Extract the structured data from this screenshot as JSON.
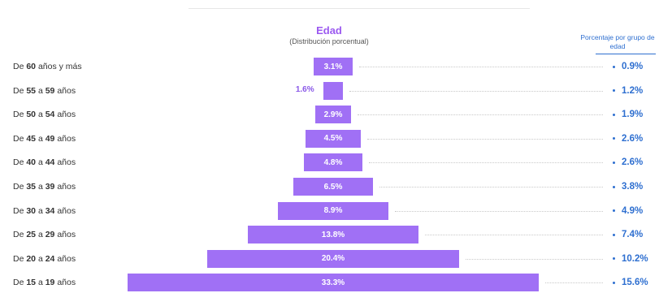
{
  "chart_data": {
    "type": "bar",
    "title": "Edad",
    "subtitle": "(Distribución porcentual)",
    "right_header": "Porcentaje por grupo de edad",
    "categories": [
      "De 60 años y más",
      "De 55 a 59 años",
      "De 50 a 54 años",
      "De 45 a 49 años",
      "De 40 a 44 años",
      "De 35 a 39 años",
      "De 30 a 34 años",
      "De 25 a 29 años",
      "De 20 a 24 años",
      "De 15 a 19 años"
    ],
    "series": [
      {
        "values": [
          3.1,
          1.6,
          2.9,
          4.5,
          4.8,
          6.5,
          8.9,
          13.8,
          20.4,
          33.3
        ],
        "labels": [
          "3.1%",
          "1.6%",
          "2.9%",
          "4.5%",
          "4.8%",
          "6.5%",
          "8.9%",
          "13.8%",
          "20.4%",
          "33.3%"
        ]
      },
      {
        "values": [
          0.9,
          1.2,
          1.9,
          2.6,
          2.6,
          3.8,
          4.9,
          7.4,
          10.2,
          15.6
        ],
        "labels": [
          "0.9%",
          "1.2%",
          "1.9%",
          "2.6%",
          "2.6%",
          "3.8%",
          "4.9%",
          "7.4%",
          "10.2%",
          "15.6%"
        ]
      }
    ],
    "colors": {
      "bar": "#a070f5",
      "title": "#9b59f0",
      "right_values": "#2e6fd0",
      "dots": "#c9c9c9"
    },
    "grid": false,
    "legend": "none"
  }
}
